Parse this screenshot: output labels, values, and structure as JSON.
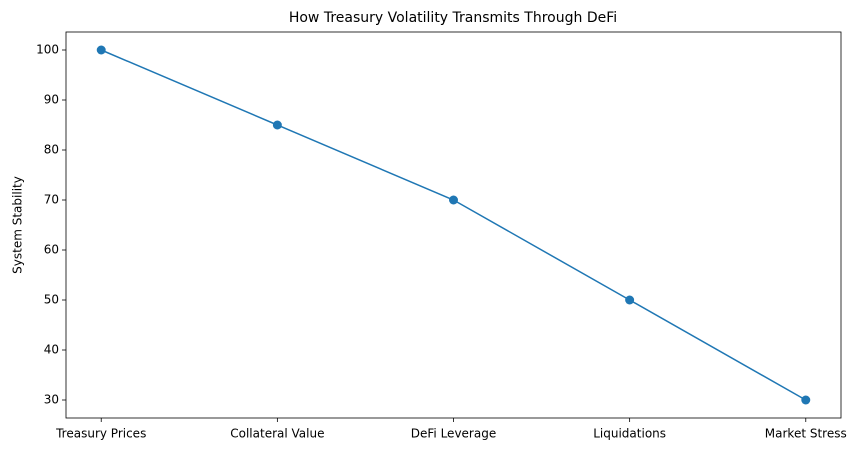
{
  "chart_data": {
    "type": "line",
    "title": "How Treasury Volatility Transmits Through DeFi",
    "ylabel": "System Stability",
    "categories": [
      "Treasury Prices",
      "Collateral Value",
      "DeFi Leverage",
      "Liquidations",
      "Market Stress"
    ],
    "values": [
      100,
      85,
      70,
      50,
      30
    ],
    "color": "#1f77b4",
    "marker": true,
    "ylim": [
      26.4,
      103.6
    ],
    "yticks": [
      30,
      40,
      50,
      60,
      70,
      80,
      90,
      100
    ],
    "grid": false
  }
}
